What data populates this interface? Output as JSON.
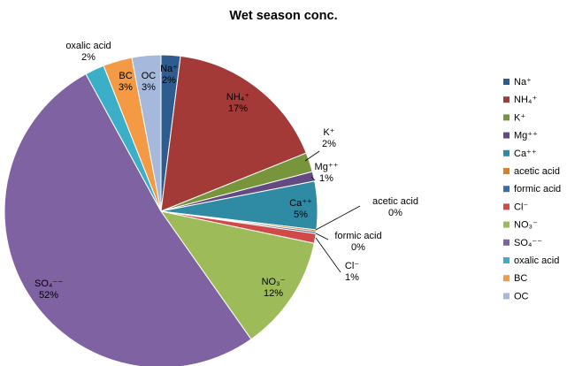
{
  "chart_data": {
    "type": "pie",
    "title": "Wet season conc.",
    "legend_position": "right",
    "slices": [
      {
        "name": "Na⁺",
        "value": 2,
        "percent_label": "2%",
        "color": "#2E5C8E"
      },
      {
        "name": "NH₄⁺",
        "value": 17,
        "percent_label": "17%",
        "color": "#A33A37"
      },
      {
        "name": "K⁺",
        "value": 2,
        "percent_label": "2%",
        "color": "#79953B"
      },
      {
        "name": "Mg⁺⁺",
        "value": 1,
        "percent_label": "1%",
        "color": "#634A82"
      },
      {
        "name": "Ca⁺⁺",
        "value": 5,
        "percent_label": "5%",
        "color": "#2F8AA3"
      },
      {
        "name": "acetic acid",
        "value": 0.2,
        "percent_label": "0%",
        "color": "#DB7F2C"
      },
      {
        "name": "formic acid",
        "value": 0.2,
        "percent_label": "0%",
        "color": "#3D6DA5"
      },
      {
        "name": "Cl⁻",
        "value": 1,
        "percent_label": "1%",
        "color": "#D04A47"
      },
      {
        "name": "NO₃⁻",
        "value": 12,
        "percent_label": "12%",
        "color": "#9DBB59"
      },
      {
        "name": "SO₄⁻⁻",
        "value": 52,
        "percent_label": "52%",
        "color": "#7E62A1"
      },
      {
        "name": "oxalic acid",
        "value": 2,
        "percent_label": "2%",
        "color": "#3BAFC8"
      },
      {
        "name": "BC",
        "value": 3,
        "percent_label": "3%",
        "color": "#F49A45"
      },
      {
        "name": "OC",
        "value": 3,
        "percent_label": "3%",
        "color": "#A6B9DC"
      }
    ]
  }
}
